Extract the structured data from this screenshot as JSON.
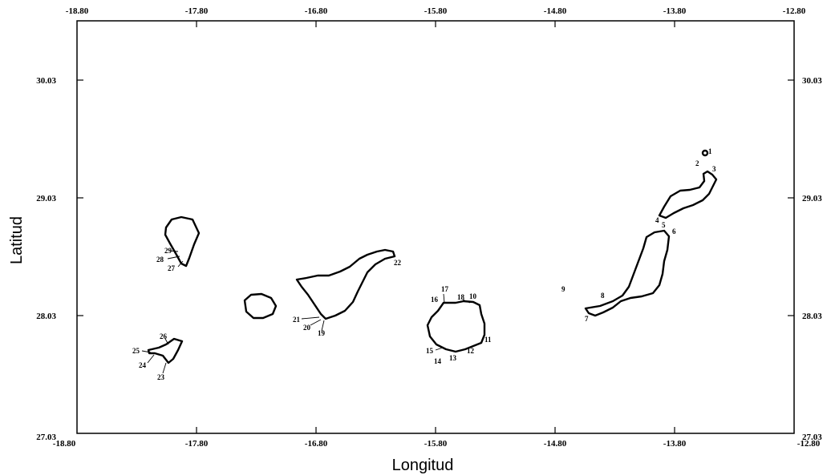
{
  "axes": {
    "x_title": "Longitud",
    "y_title": "Latitud",
    "x_ticks": [
      "-18.80",
      "-17.80",
      "-16.80",
      "-15.80",
      "-14.80",
      "-13.80",
      "-12.80"
    ],
    "y_ticks": [
      "27.03",
      "28.03",
      "29.03",
      "30.03"
    ],
    "y_ticks_right": [
      "27.03",
      "28.03",
      "29.03",
      "30.03"
    ],
    "bottom_left_corner_x": "-18.80",
    "bottom_right_corner_x": "-12.80"
  },
  "sites": [
    "1",
    "2",
    "3",
    "4",
    "5",
    "6",
    "7",
    "8",
    "9",
    "10",
    "11",
    "12",
    "13",
    "14",
    "15",
    "16",
    "17",
    "18",
    "19",
    "20",
    "21",
    "22",
    "23",
    "24",
    "25",
    "26",
    "27",
    "28",
    "29"
  ],
  "islands": [
    "lanzarote",
    "fuerteventura",
    "gran-canaria",
    "tenerife",
    "la-gomera",
    "la-palma",
    "el-hierro"
  ]
}
